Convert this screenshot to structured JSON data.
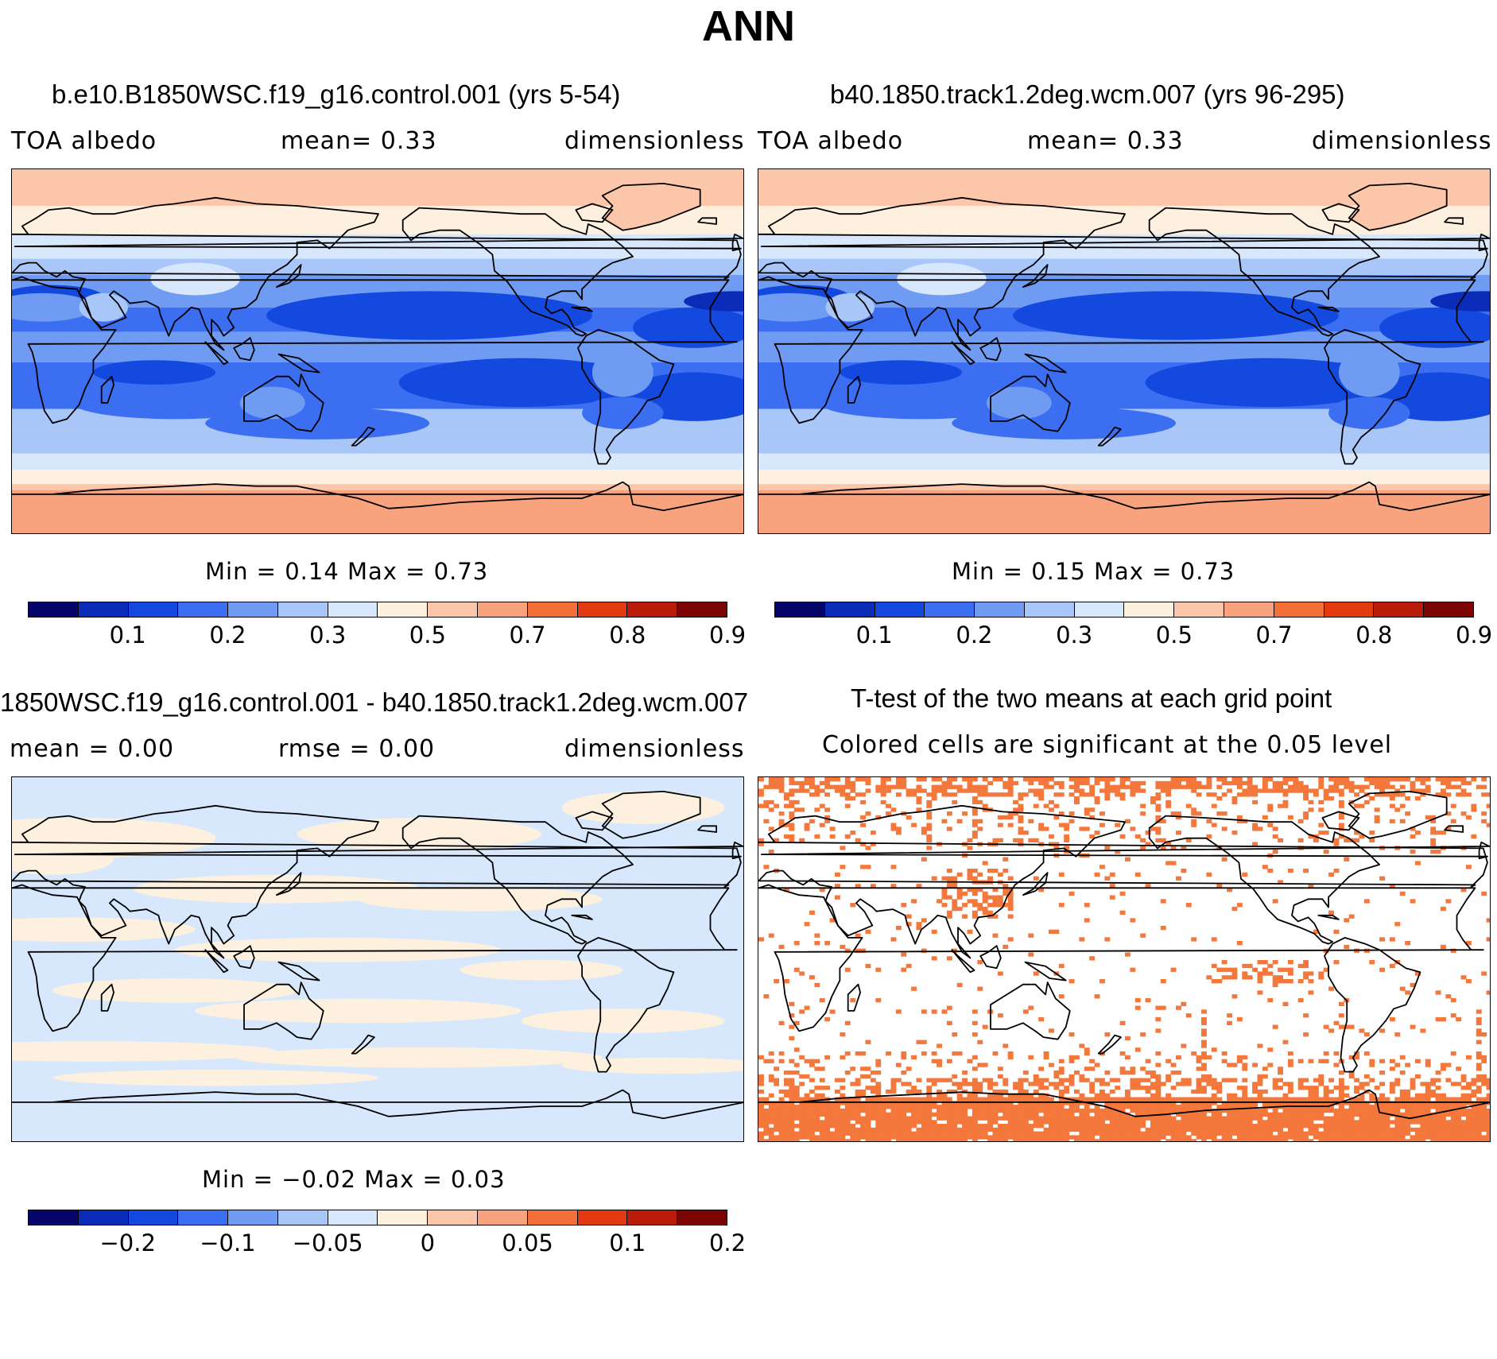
{
  "figure_title": "ANN",
  "panels": {
    "test": {
      "title": "b.e10.B1850WSC.f19_g16.control.001 (yrs 5-54)",
      "variable": "TOA  albedo",
      "mean_text": "mean=    0.33",
      "units": "dimensionless",
      "minmax_text": "Min  =    0.14  Max  =    0.73"
    },
    "control": {
      "title": "b40.1850.track1.2deg.wcm.007 (yrs 96-295)",
      "variable": "TOA  albedo",
      "mean_text": "mean=    0.33",
      "units": "dimensionless",
      "minmax_text": "Min  =    0.15  Max  =    0.73"
    },
    "diff": {
      "title": "1850WSC.f19_g16.control.001 - b40.1850.track1.2deg.wcm.007",
      "mean_text": "mean  =    0.00",
      "rmse_text": "rmse  =    0.00",
      "units": "dimensionless",
      "minmax_text": "Min  =   −0.02  Max  =    0.03"
    },
    "ttest": {
      "title": "T-test of the two means at each grid point",
      "subtitle": "Colored cells are significant at the 0.05 level",
      "cell_color": "#f4773c"
    }
  },
  "colorbars": {
    "field_colors": [
      "#04046a",
      "#0a2cb8",
      "#1449e0",
      "#3b6ef0",
      "#6f9cf2",
      "#a9c6f8",
      "#d8e8fc",
      "#fdf0df",
      "#fcc6aa",
      "#f8a27e",
      "#f3703a",
      "#e43a12",
      "#b91b08",
      "#7c0404"
    ],
    "field_ticks": [
      "0.1",
      "0.2",
      "0.3",
      "0.5",
      "0.7",
      "0.8",
      "0.9"
    ],
    "diff_colors": [
      "#04046a",
      "#0a2cb8",
      "#1449e0",
      "#3b6ef0",
      "#6f9cf2",
      "#a9c6f8",
      "#d8e8fc",
      "#fdf0df",
      "#fcc6aa",
      "#f8a27e",
      "#f3703a",
      "#e43a12",
      "#b91b08",
      "#7c0404"
    ],
    "diff_ticks": [
      "−0.2",
      "−0.1",
      "−0.05",
      "0",
      "0.05",
      "0.1",
      "0.2"
    ]
  }
}
